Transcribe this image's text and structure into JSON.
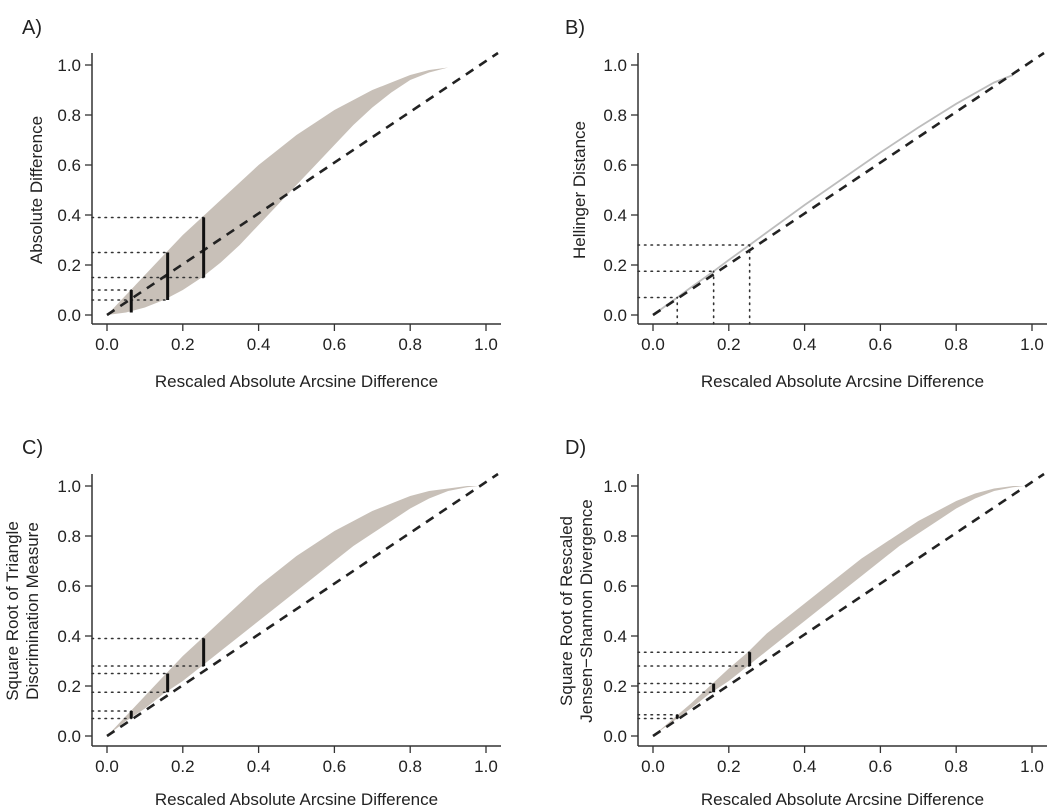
{
  "figure": {
    "colors": {
      "band_fill": "#c8c0b8",
      "curve_gray": "#bdbdbd",
      "axis": "#333333",
      "reference_line": "#222222",
      "errorbar": "#111111",
      "guides": "#333333"
    }
  },
  "chart_data": [
    {
      "id": "A",
      "panel_label": "A)",
      "type": "area",
      "title": "",
      "xlabel": "Rescaled Absolute Arcsine Difference",
      "ylabel": [
        "Absolute Difference"
      ],
      "xlim": [
        0,
        1
      ],
      "ylim": [
        0,
        1
      ],
      "xticks": [
        "0.0",
        "0.2",
        "0.4",
        "0.6",
        "0.8",
        "1.0"
      ],
      "yticks": [
        "0.0",
        "0.2",
        "0.4",
        "0.6",
        "0.8",
        "1.0"
      ],
      "grid": false,
      "reference_line": {
        "type": "dashed",
        "label": "y = x",
        "points": [
          [
            0,
            0
          ],
          [
            1,
            1
          ]
        ]
      },
      "band": {
        "name": "range of measure",
        "x": [
          0.0,
          0.05,
          0.1,
          0.15,
          0.2,
          0.25,
          0.3,
          0.35,
          0.4,
          0.45,
          0.5,
          0.55,
          0.6,
          0.65,
          0.7,
          0.75,
          0.8,
          0.85,
          0.9,
          0.95,
          0.98
        ],
        "upper": [
          0.0,
          0.08,
          0.16,
          0.24,
          0.32,
          0.39,
          0.46,
          0.53,
          0.6,
          0.66,
          0.72,
          0.77,
          0.82,
          0.86,
          0.9,
          0.93,
          0.96,
          0.98,
          0.99,
          1.0,
          1.0
        ],
        "lower": [
          0.0,
          0.01,
          0.03,
          0.06,
          0.1,
          0.15,
          0.21,
          0.28,
          0.36,
          0.44,
          0.52,
          0.6,
          0.68,
          0.76,
          0.83,
          0.89,
          0.94,
          0.97,
          0.99,
          1.0,
          1.0
        ]
      },
      "errorbars": [
        {
          "x": 0.064,
          "ymin": 0.01,
          "ymax": 0.1,
          "ymid": 0.07
        },
        {
          "x": 0.16,
          "ymin": 0.06,
          "ymax": 0.25,
          "ymid": 0.15
        },
        {
          "x": 0.255,
          "ymin": 0.15,
          "ymax": 0.39,
          "ymid": 0.26
        }
      ],
      "h_guides": [
        0.39,
        0.25,
        0.15,
        0.1,
        0.06
      ],
      "v_guides": []
    },
    {
      "id": "B",
      "panel_label": "B)",
      "type": "line",
      "title": "",
      "xlabel": "Rescaled Absolute Arcsine Difference",
      "ylabel": [
        "Hellinger Distance"
      ],
      "xlim": [
        0,
        1
      ],
      "ylim": [
        0,
        1
      ],
      "xticks": [
        "0.0",
        "0.2",
        "0.4",
        "0.6",
        "0.8",
        "1.0"
      ],
      "yticks": [
        "0.0",
        "0.2",
        "0.4",
        "0.6",
        "0.8",
        "1.0"
      ],
      "grid": false,
      "reference_line": {
        "type": "dashed",
        "label": "y = x",
        "points": [
          [
            0,
            0
          ],
          [
            1,
            1
          ]
        ]
      },
      "series": [
        {
          "name": "Hellinger Distance",
          "x": [
            0.0,
            0.064,
            0.1,
            0.16,
            0.2,
            0.255,
            0.3,
            0.4,
            0.5,
            0.6,
            0.7,
            0.8,
            0.9,
            0.95
          ],
          "y": [
            0.0,
            0.07,
            0.11,
            0.175,
            0.22,
            0.28,
            0.33,
            0.44,
            0.545,
            0.65,
            0.75,
            0.845,
            0.93,
            0.96
          ]
        }
      ],
      "h_guides": [
        0.28,
        0.175,
        0.07
      ],
      "v_guides": [
        0.064,
        0.16,
        0.255
      ]
    },
    {
      "id": "C",
      "panel_label": "C)",
      "type": "area",
      "title": "",
      "xlabel": "Rescaled Absolute Arcsine Difference",
      "ylabel": [
        "Square Root of Triangle",
        "Discrimination Measure"
      ],
      "xlim": [
        0,
        1
      ],
      "ylim": [
        0,
        1
      ],
      "xticks": [
        "0.0",
        "0.2",
        "0.4",
        "0.6",
        "0.8",
        "1.0"
      ],
      "yticks": [
        "0.0",
        "0.2",
        "0.4",
        "0.6",
        "0.8",
        "1.0"
      ],
      "grid": false,
      "reference_line": {
        "type": "dashed",
        "label": "y = x",
        "points": [
          [
            0,
            0
          ],
          [
            1,
            1
          ]
        ]
      },
      "band": {
        "name": "range of measure",
        "x": [
          0.0,
          0.05,
          0.1,
          0.15,
          0.2,
          0.25,
          0.3,
          0.35,
          0.4,
          0.45,
          0.5,
          0.55,
          0.6,
          0.65,
          0.7,
          0.75,
          0.8,
          0.85,
          0.9,
          0.95,
          0.98
        ],
        "upper": [
          0.0,
          0.08,
          0.16,
          0.24,
          0.32,
          0.39,
          0.46,
          0.53,
          0.6,
          0.66,
          0.72,
          0.77,
          0.82,
          0.86,
          0.9,
          0.93,
          0.96,
          0.98,
          0.99,
          1.0,
          1.0
        ],
        "lower": [
          0.0,
          0.06,
          0.11,
          0.17,
          0.22,
          0.28,
          0.34,
          0.4,
          0.46,
          0.52,
          0.58,
          0.64,
          0.7,
          0.76,
          0.81,
          0.86,
          0.91,
          0.95,
          0.98,
          0.995,
          1.0
        ]
      },
      "errorbars": [
        {
          "x": 0.064,
          "ymin": 0.07,
          "ymax": 0.1
        },
        {
          "x": 0.16,
          "ymin": 0.175,
          "ymax": 0.25
        },
        {
          "x": 0.255,
          "ymin": 0.28,
          "ymax": 0.39
        }
      ],
      "h_guides": [
        0.39,
        0.28,
        0.25,
        0.175,
        0.1,
        0.07
      ],
      "v_guides": []
    },
    {
      "id": "D",
      "panel_label": "D)",
      "type": "area",
      "title": "",
      "xlabel": "Rescaled Absolute Arcsine Difference",
      "ylabel": [
        "Square Root of Rescaled",
        "Jensen−Shannon Divergence"
      ],
      "xlim": [
        0,
        1
      ],
      "ylim": [
        0,
        1
      ],
      "xticks": [
        "0.0",
        "0.2",
        "0.4",
        "0.6",
        "0.8",
        "1.0"
      ],
      "yticks": [
        "0.0",
        "0.2",
        "0.4",
        "0.6",
        "0.8",
        "1.0"
      ],
      "grid": false,
      "reference_line": {
        "type": "dashed",
        "label": "y = x",
        "points": [
          [
            0,
            0
          ],
          [
            1,
            1
          ]
        ]
      },
      "band": {
        "name": "range of measure",
        "x": [
          0.0,
          0.05,
          0.1,
          0.15,
          0.2,
          0.25,
          0.3,
          0.35,
          0.4,
          0.45,
          0.5,
          0.55,
          0.6,
          0.65,
          0.7,
          0.75,
          0.8,
          0.85,
          0.9,
          0.95,
          0.98
        ],
        "upper": [
          0.0,
          0.065,
          0.13,
          0.2,
          0.27,
          0.335,
          0.41,
          0.47,
          0.53,
          0.59,
          0.65,
          0.71,
          0.76,
          0.81,
          0.86,
          0.9,
          0.94,
          0.97,
          0.99,
          1.0,
          1.0
        ],
        "lower": [
          0.0,
          0.055,
          0.11,
          0.17,
          0.22,
          0.28,
          0.34,
          0.4,
          0.46,
          0.52,
          0.58,
          0.64,
          0.7,
          0.76,
          0.81,
          0.86,
          0.91,
          0.95,
          0.98,
          0.995,
          1.0
        ]
      },
      "errorbars": [
        {
          "x": 0.064,
          "ymin": 0.07,
          "ymax": 0.085
        },
        {
          "x": 0.16,
          "ymin": 0.175,
          "ymax": 0.21
        },
        {
          "x": 0.255,
          "ymin": 0.28,
          "ymax": 0.335
        }
      ],
      "h_guides": [
        0.335,
        0.28,
        0.21,
        0.175,
        0.085,
        0.07
      ],
      "v_guides": []
    }
  ]
}
